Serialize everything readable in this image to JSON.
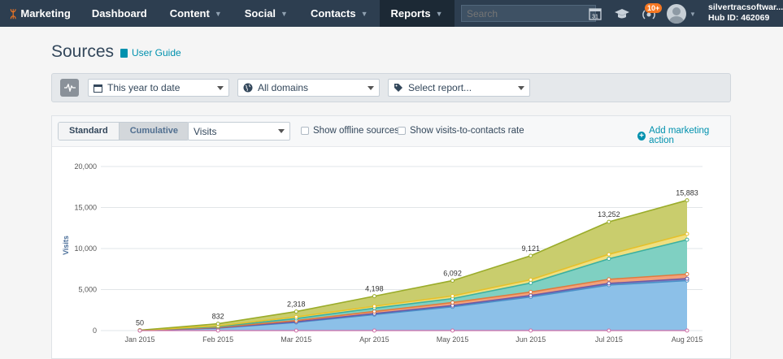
{
  "topbar": {
    "brand": "Marketing",
    "nav": [
      "Dashboard",
      "Content",
      "Social",
      "Contacts",
      "Reports"
    ],
    "search_placeholder": "Search",
    "calendar_day": "31",
    "notification_badge": "10+",
    "account_name": "silvertracsoftwar...",
    "hub_id": "Hub ID: 462069"
  },
  "page": {
    "title": "Sources",
    "guide_link": "User Guide"
  },
  "filters": {
    "date_range": "This year to date",
    "domains": "All domains",
    "report": "Select report..."
  },
  "controls": {
    "standard_label": "Standard",
    "cumulative_label": "Cumulative",
    "metric": "Visits",
    "offline_label": "Show offline sources",
    "rate_label": "Show visits-to-contacts rate",
    "add_action": "Add marketing action"
  },
  "chart_data": {
    "type": "area",
    "stacked": true,
    "ylabel": "Visits",
    "ylim": [
      0,
      20000
    ],
    "yticks": [
      "0",
      "5,000",
      "10,000",
      "15,000",
      "20,000"
    ],
    "categories": [
      "Jan 2015",
      "Feb 2015",
      "Mar 2015",
      "Apr 2015",
      "May 2015",
      "Jun 2015",
      "Jul 2015",
      "Aug 2015"
    ],
    "total_labels": [
      "50",
      "832",
      "2,318",
      "4,198",
      "6,092",
      "9,121",
      "13,252",
      "15,883"
    ],
    "series": [
      {
        "color": "#4a90c8",
        "fill": "#8cc0e8",
        "values": [
          15,
          300,
          1000,
          1950,
          2900,
          4100,
          5550,
          6100
        ]
      },
      {
        "color": "#6a5aa8",
        "fill": "#8a84c0",
        "values": [
          2,
          30,
          70,
          120,
          150,
          180,
          200,
          230
        ]
      },
      {
        "color": "#e07a3e",
        "fill": "#f2a17a",
        "values": [
          3,
          60,
          150,
          260,
          370,
          420,
          500,
          550
        ]
      },
      {
        "color": "#3cb0a0",
        "fill": "#7fd0c2",
        "values": [
          5,
          90,
          250,
          400,
          480,
          1100,
          2500,
          4200
        ]
      },
      {
        "color": "#e6c02a",
        "fill": "#efdf80",
        "values": [
          5,
          90,
          200,
          240,
          320,
          400,
          550,
          700
        ]
      },
      {
        "color": "#9aac2a",
        "fill": "#c9cd6d",
        "values": [
          20,
          262,
          648,
          1228,
          1872,
          2921,
          3952,
          4103
        ]
      }
    ],
    "grid": true,
    "legend": "none"
  }
}
